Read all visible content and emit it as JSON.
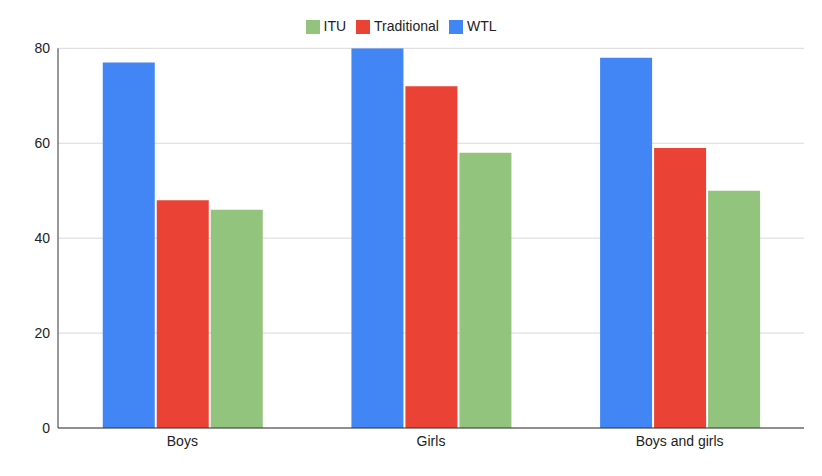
{
  "chart_data": {
    "type": "bar",
    "categories": [
      "Boys",
      "Girls",
      "Boys and girls"
    ],
    "series": [
      {
        "name": "WTL",
        "color": "#4285f4",
        "values": [
          77,
          80,
          78
        ]
      },
      {
        "name": "Traditional",
        "color": "#ea4335",
        "values": [
          48,
          72,
          59
        ]
      },
      {
        "name": "ITU",
        "color": "#93c47d",
        "values": [
          46,
          58,
          50
        ]
      }
    ],
    "ylim": [
      0,
      80
    ],
    "yticks": [
      0,
      20,
      40,
      60,
      80
    ],
    "grid": true,
    "legend": "top"
  }
}
